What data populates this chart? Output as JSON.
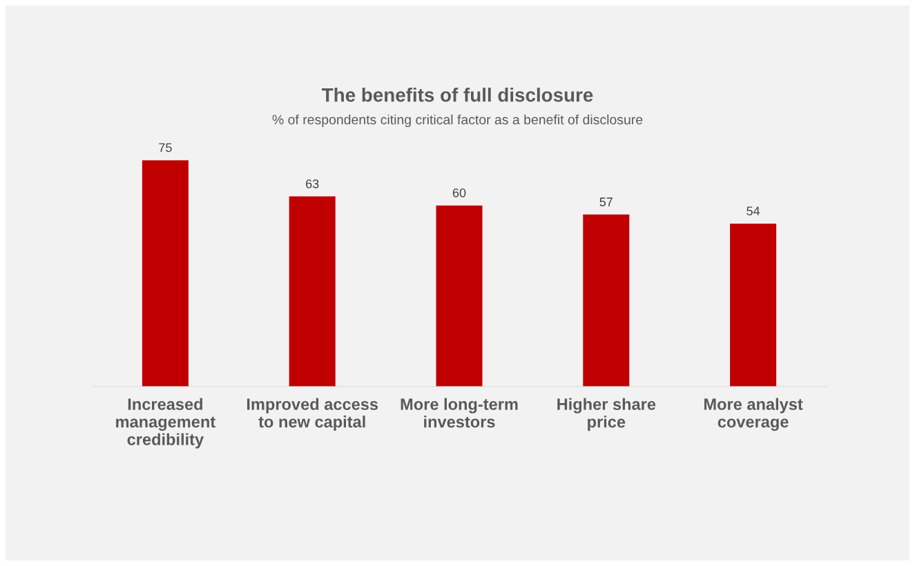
{
  "chart_data": {
    "type": "bar",
    "title": "The benefits of full disclosure",
    "subtitle": "% of respondents citing critical factor as a benefit of disclosure",
    "categories": [
      "Increased\nmanagement\ncredibility",
      "Improved access\nto new capital",
      "More long-term\ninvestors",
      "Higher share\nprice",
      "More analyst\ncoverage"
    ],
    "values": [
      75,
      63,
      60,
      57,
      54
    ],
    "color": "#c00000",
    "data_labels": true,
    "grid": false,
    "legend": false
  }
}
